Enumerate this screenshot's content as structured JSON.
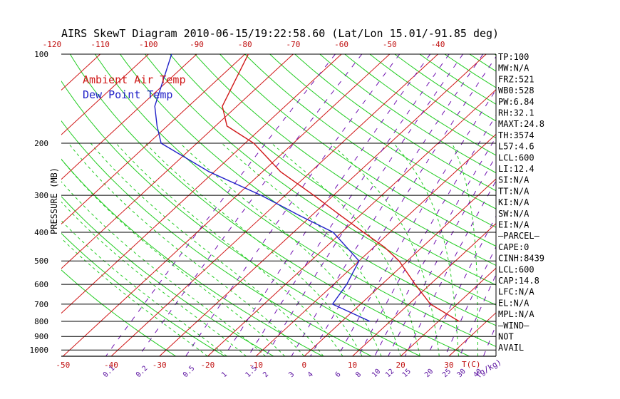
{
  "chart_data": {
    "type": "line",
    "title": "AIRS SkewT Diagram 2010-06-15/19:22:58.60 (Lat/Lon 15.01/-91.85 deg)",
    "ylabel": "PRESSURE (MB)",
    "x_unit_label": "T(C)",
    "mixing_ratio_unit_label": "(g/kg)",
    "pressure_ticks": [
      "100",
      "200",
      "300",
      "400",
      "500",
      "600",
      "700",
      "800",
      "900",
      "1000"
    ],
    "pressure_lines": [
      100,
      200,
      300,
      400,
      500,
      600,
      700,
      800,
      900,
      1000
    ],
    "top_temp_ticks": [
      "-120",
      "-110",
      "-100",
      "-90",
      "-80",
      "-70",
      "-60",
      "-50",
      "-40"
    ],
    "bottom_temp_ticks": [
      "-50",
      "-40",
      "-30",
      "-20",
      "-10",
      "0",
      "10",
      "20",
      "30"
    ],
    "mixing_ratio_ticks": [
      "0.1",
      "0.2",
      "0.5",
      "1",
      "1.5",
      "2",
      "3",
      "4",
      "6",
      "8",
      "10",
      "12",
      "15",
      "20",
      "25",
      "30",
      "40"
    ],
    "legend": [
      {
        "label": "Ambient Air Temp",
        "color": "#d01818"
      },
      {
        "label": "Dew Point Temp",
        "color": "#2020c8"
      }
    ],
    "series": [
      {
        "name": "Ambient Air Temp",
        "color": "#d01818",
        "points": [
          {
            "p": 100,
            "t": -79.3
          },
          {
            "p": 150,
            "t": -73.0
          },
          {
            "p": 175,
            "t": -67.6
          },
          {
            "p": 200,
            "t": -58.2
          },
          {
            "p": 250,
            "t": -46.2
          },
          {
            "p": 300,
            "t": -34.1
          },
          {
            "p": 350,
            "t": -24.2
          },
          {
            "p": 400,
            "t": -15.5
          },
          {
            "p": 450,
            "t": -7.7
          },
          {
            "p": 500,
            "t": -1.7
          },
          {
            "p": 600,
            "t": 6.9
          },
          {
            "p": 700,
            "t": 14.5
          },
          {
            "p": 800,
            "t": 24.3
          }
        ]
      },
      {
        "name": "Dew Point Temp",
        "color": "#2020c8",
        "points": [
          {
            "p": 100,
            "t": -95.2
          },
          {
            "p": 150,
            "t": -87.0
          },
          {
            "p": 175,
            "t": -82.1
          },
          {
            "p": 200,
            "t": -77.4
          },
          {
            "p": 250,
            "t": -61.0
          },
          {
            "p": 300,
            "t": -45.0
          },
          {
            "p": 350,
            "t": -32.8
          },
          {
            "p": 400,
            "t": -21.8
          },
          {
            "p": 500,
            "t": -10.0
          },
          {
            "p": 600,
            "t": -7.3
          },
          {
            "p": 700,
            "t": -5.8
          },
          {
            "p": 800,
            "t": 5.8
          }
        ]
      }
    ]
  },
  "indices": [
    "TP:100",
    "MW:N/A",
    "FRZ:521",
    "WB0:528",
    "PW:6.84",
    "RH:32.1",
    "MAXT:24.8",
    "TH:3574",
    "L57:4.6",
    "LCL:600",
    "LI:12.4",
    "SI:N/A",
    "TT:N/A",
    "KI:N/A",
    "SW:N/A",
    "EI:N/A",
    "–PARCEL–",
    "CAPE:0",
    "CINH:8439",
    "LCL:600",
    "CAP:14.8",
    "LFC:N/A",
    "EL:N/A",
    "MPL:N/A",
    "–WIND–",
    " NOT",
    "AVAIL"
  ]
}
